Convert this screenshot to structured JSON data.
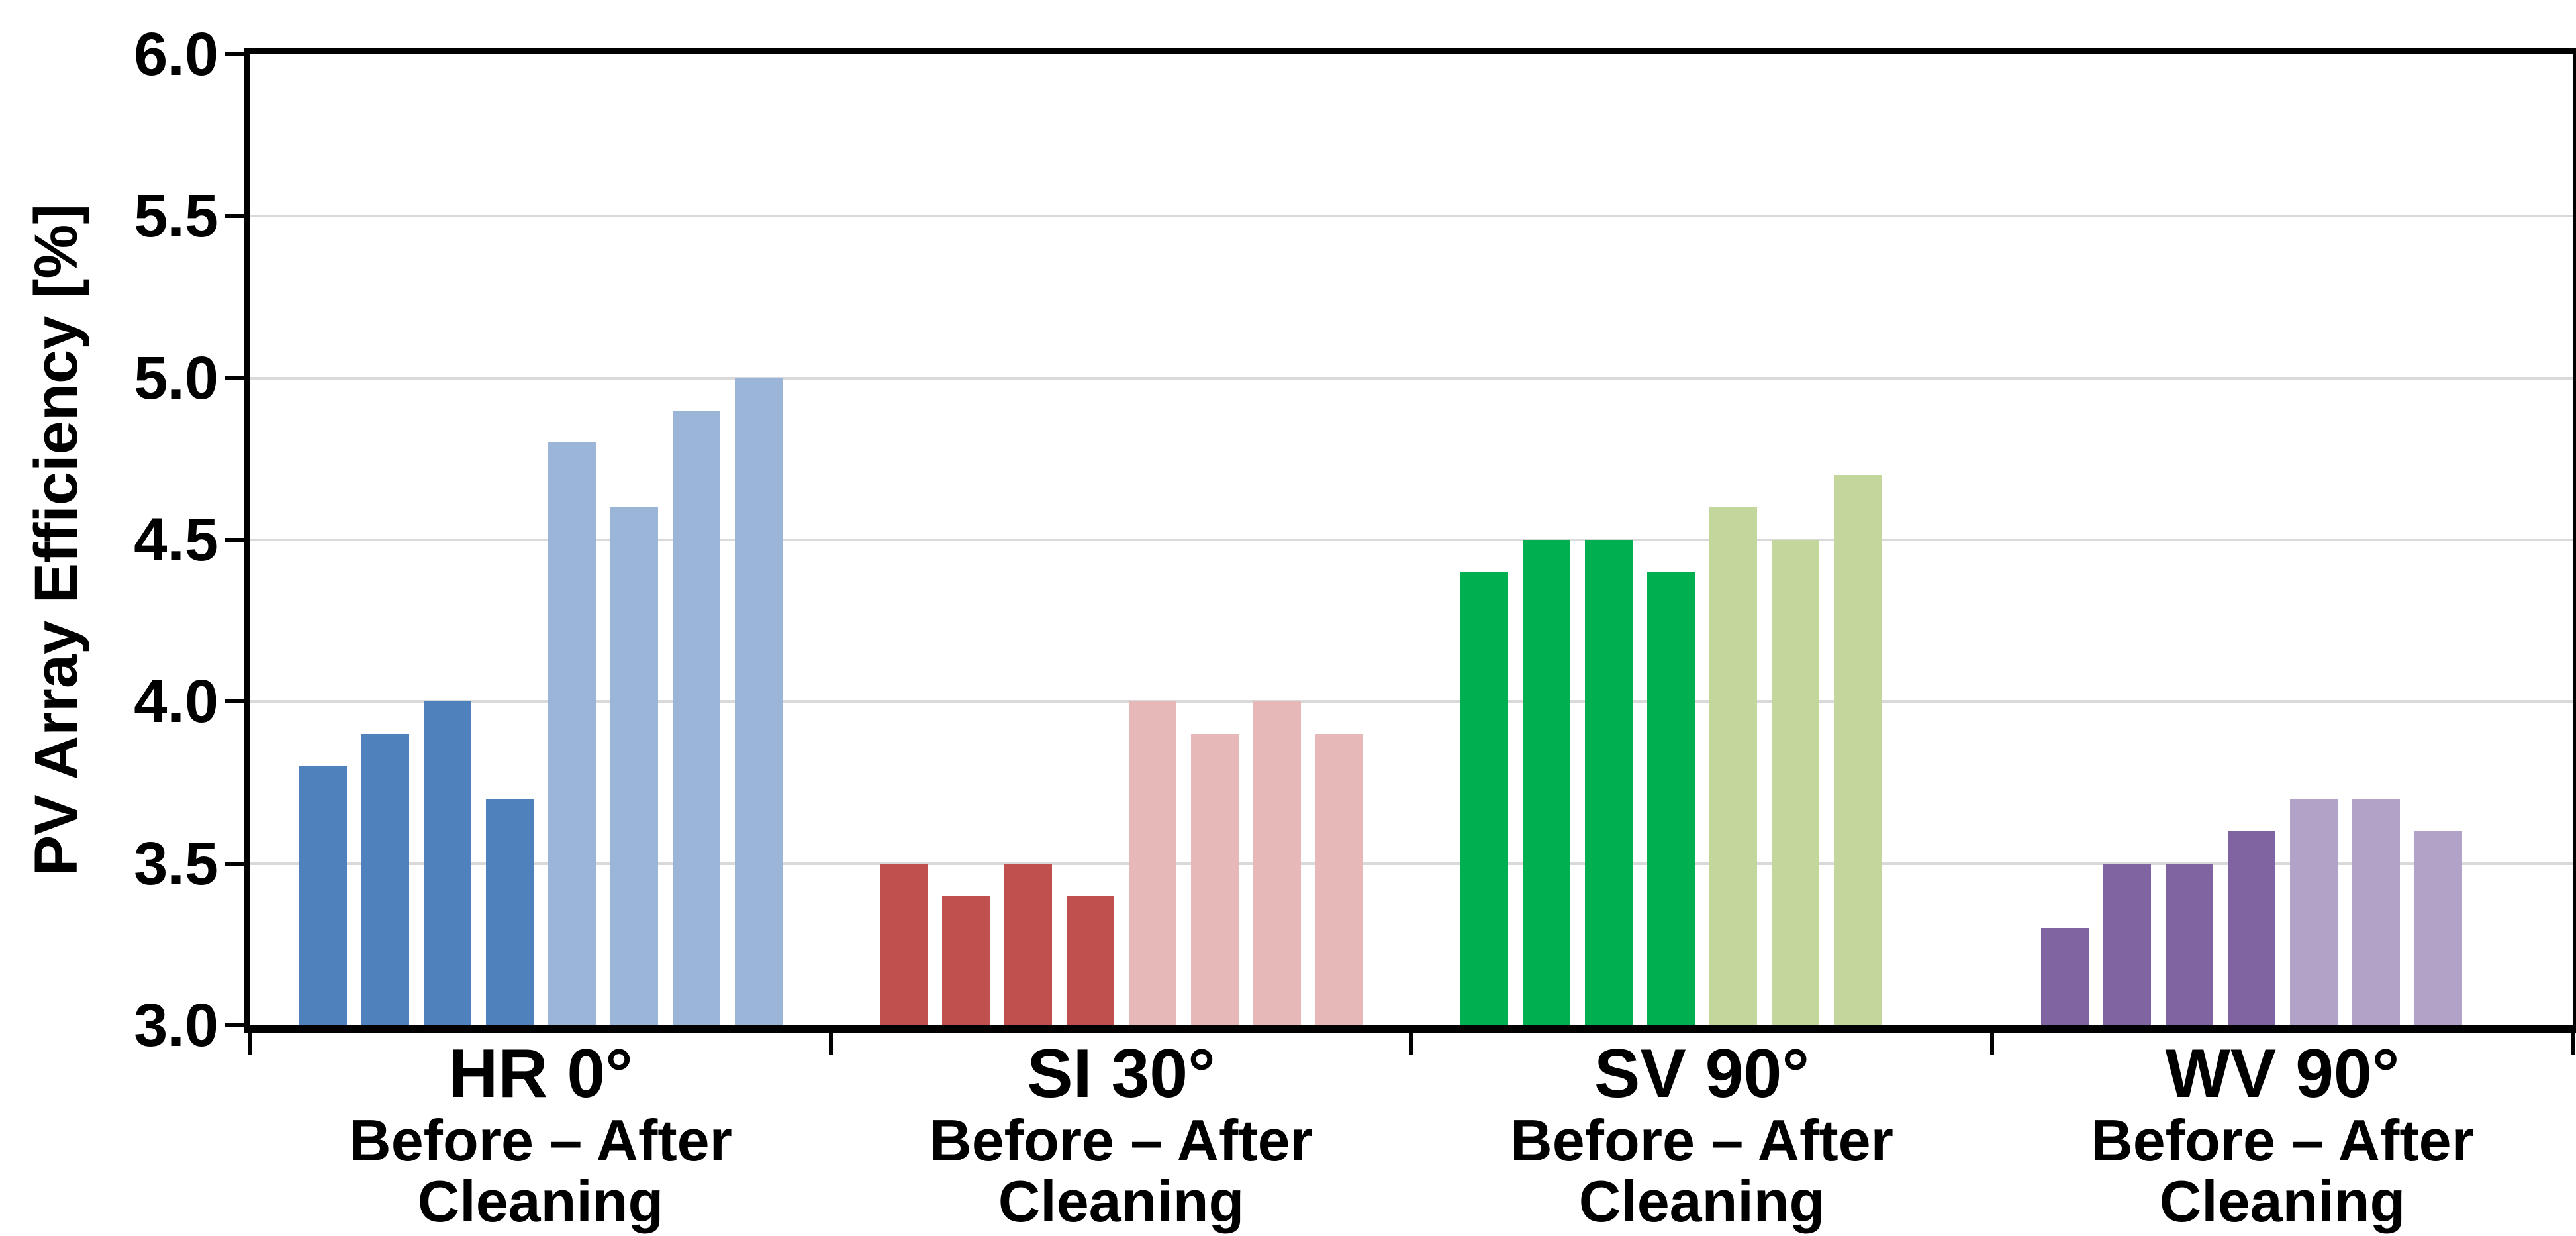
{
  "chart_data": {
    "type": "bar",
    "title": "",
    "ylabel": "PV Array Efficiency [%]",
    "xlabel": "",
    "ylim": [
      3.0,
      6.0
    ],
    "ytick_values": [
      6.0,
      5.5,
      5.0,
      4.5,
      4.0,
      3.5,
      3.0
    ],
    "ytick_labels": [
      "6.0",
      "5.5",
      "5.0",
      "4.5",
      "4.0",
      "3.5",
      "3.0"
    ],
    "grid": true,
    "gridline_values": [
      5.5,
      5.0,
      4.5,
      4.0,
      3.5
    ],
    "legend": "none",
    "colors": {
      "axis": "#000000",
      "gridline": "#d9d9d9",
      "background": "#ffffff",
      "text": "#000000"
    },
    "groups": [
      {
        "label": "HR 0°",
        "sublabel_line1": "Before – After",
        "sublabel_line2": "Cleaning",
        "series": [
          {
            "name": "Before Cleaning",
            "color": "#4F81BD",
            "values": [
              3.8,
              3.9,
              4.0,
              3.7
            ]
          },
          {
            "name": "After Cleaning",
            "color": "#9AB5D8",
            "values": [
              4.8,
              4.6,
              4.9,
              5.0
            ]
          }
        ]
      },
      {
        "label": "SI 30°",
        "sublabel_line1": "Before – After",
        "sublabel_line2": "Cleaning",
        "series": [
          {
            "name": "Before Cleaning",
            "color": "#C0504D",
            "values": [
              3.5,
              3.4,
              3.5,
              3.4
            ]
          },
          {
            "name": "After Cleaning",
            "color": "#E6B9B8",
            "values": [
              4.0,
              3.9,
              4.0,
              3.9
            ]
          }
        ]
      },
      {
        "label": "SV 90°",
        "sublabel_line1": "Before – After",
        "sublabel_line2": "Cleaning",
        "series": [
          {
            "name": "Before Cleaning",
            "color": "#00B050",
            "values": [
              4.4,
              4.5,
              4.5,
              4.4
            ]
          },
          {
            "name": "After Cleaning",
            "color": "#C3D69B",
            "values": [
              4.6,
              4.5,
              4.7
            ]
          }
        ]
      },
      {
        "label": "WV 90°",
        "sublabel_line1": "Before – After",
        "sublabel_line2": "Cleaning",
        "series": [
          {
            "name": "Before Cleaning",
            "color": "#8064A2",
            "values": [
              3.3,
              3.5,
              3.5,
              3.6
            ]
          },
          {
            "name": "After Cleaning",
            "color": "#B3A2C7",
            "values": [
              3.7,
              3.7,
              3.6
            ]
          }
        ]
      }
    ]
  }
}
